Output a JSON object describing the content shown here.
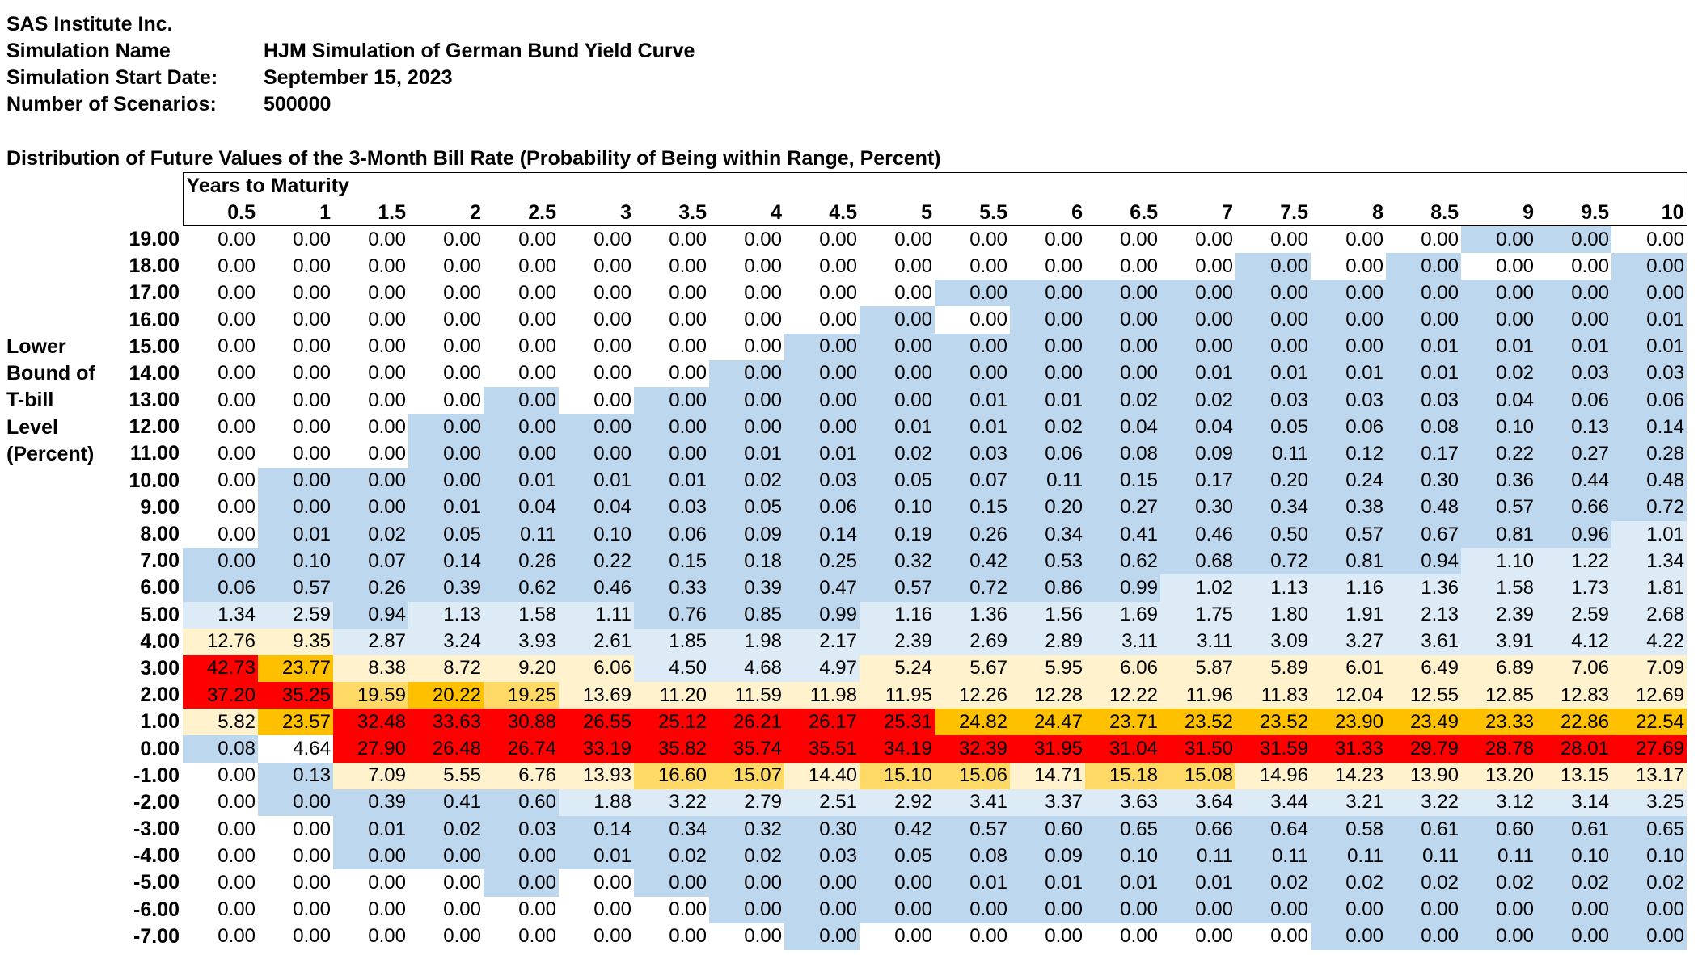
{
  "header": {
    "company": "SAS Institute Inc.",
    "rows": [
      {
        "label": "Simulation Name",
        "value": "HJM Simulation of German Bund Yield Curve"
      },
      {
        "label": "Simulation Start Date:",
        "value": "September 15, 2023"
      },
      {
        "label": "Number of Scenarios:",
        "value": "500000"
      }
    ]
  },
  "table_title": "Distribution of Future Values of the 3-Month Bill Rate (Probability of Being within Range, Percent)",
  "column_group_label": "Years to Maturity",
  "row_axis_label": [
    "Lower",
    "Bound of",
    "T-bill",
    "Level",
    "(Percent)"
  ],
  "colors": {
    "blue": "#bdd7ee",
    "light_blue": "#ddebf7",
    "cream": "#fff2cc",
    "gold": "#ffd966",
    "orange": "#ffc000",
    "red": "#ff0000",
    "white": "#ffffff"
  },
  "columns": [
    "0.5",
    "1",
    "1.5",
    "2",
    "2.5",
    "3",
    "3.5",
    "4",
    "4.5",
    "5",
    "5.5",
    "6",
    "6.5",
    "7",
    "7.5",
    "8",
    "8.5",
    "9",
    "9.5",
    "10"
  ],
  "rows": [
    {
      "label": "19.00",
      "values": [
        "0.00",
        "0.00",
        "0.00",
        "0.00",
        "0.00",
        "0.00",
        "0.00",
        "0.00",
        "0.00",
        "0.00",
        "0.00",
        "0.00",
        "0.00",
        "0.00",
        "0.00",
        "0.00",
        "0.00",
        "0.00",
        "0.00",
        "0.00"
      ],
      "colors": [
        "w",
        "w",
        "w",
        "w",
        "w",
        "w",
        "w",
        "w",
        "w",
        "w",
        "w",
        "w",
        "w",
        "w",
        "w",
        "w",
        "w",
        "b",
        "b",
        "w"
      ]
    },
    {
      "label": "18.00",
      "values": [
        "0.00",
        "0.00",
        "0.00",
        "0.00",
        "0.00",
        "0.00",
        "0.00",
        "0.00",
        "0.00",
        "0.00",
        "0.00",
        "0.00",
        "0.00",
        "0.00",
        "0.00",
        "0.00",
        "0.00",
        "0.00",
        "0.00",
        "0.00"
      ],
      "colors": [
        "w",
        "w",
        "w",
        "w",
        "w",
        "w",
        "w",
        "w",
        "w",
        "w",
        "w",
        "w",
        "w",
        "w",
        "b",
        "w",
        "b",
        "w",
        "w",
        "b"
      ]
    },
    {
      "label": "17.00",
      "values": [
        "0.00",
        "0.00",
        "0.00",
        "0.00",
        "0.00",
        "0.00",
        "0.00",
        "0.00",
        "0.00",
        "0.00",
        "0.00",
        "0.00",
        "0.00",
        "0.00",
        "0.00",
        "0.00",
        "0.00",
        "0.00",
        "0.00",
        "0.00"
      ],
      "colors": [
        "w",
        "w",
        "w",
        "w",
        "w",
        "w",
        "w",
        "w",
        "w",
        "w",
        "b",
        "b",
        "b",
        "b",
        "b",
        "b",
        "b",
        "b",
        "b",
        "b"
      ]
    },
    {
      "label": "16.00",
      "values": [
        "0.00",
        "0.00",
        "0.00",
        "0.00",
        "0.00",
        "0.00",
        "0.00",
        "0.00",
        "0.00",
        "0.00",
        "0.00",
        "0.00",
        "0.00",
        "0.00",
        "0.00",
        "0.00",
        "0.00",
        "0.00",
        "0.00",
        "0.01"
      ],
      "colors": [
        "w",
        "w",
        "w",
        "w",
        "w",
        "w",
        "w",
        "w",
        "w",
        "b",
        "w",
        "b",
        "b",
        "b",
        "b",
        "b",
        "b",
        "b",
        "b",
        "b"
      ]
    },
    {
      "label": "15.00",
      "values": [
        "0.00",
        "0.00",
        "0.00",
        "0.00",
        "0.00",
        "0.00",
        "0.00",
        "0.00",
        "0.00",
        "0.00",
        "0.00",
        "0.00",
        "0.00",
        "0.00",
        "0.00",
        "0.00",
        "0.01",
        "0.01",
        "0.01",
        "0.01"
      ],
      "colors": [
        "w",
        "w",
        "w",
        "w",
        "w",
        "w",
        "w",
        "w",
        "b",
        "b",
        "b",
        "b",
        "b",
        "b",
        "b",
        "b",
        "b",
        "b",
        "b",
        "b"
      ]
    },
    {
      "label": "14.00",
      "values": [
        "0.00",
        "0.00",
        "0.00",
        "0.00",
        "0.00",
        "0.00",
        "0.00",
        "0.00",
        "0.00",
        "0.00",
        "0.00",
        "0.00",
        "0.00",
        "0.01",
        "0.01",
        "0.01",
        "0.01",
        "0.02",
        "0.03",
        "0.03"
      ],
      "colors": [
        "w",
        "w",
        "w",
        "w",
        "w",
        "w",
        "w",
        "b",
        "b",
        "b",
        "b",
        "b",
        "b",
        "b",
        "b",
        "b",
        "b",
        "b",
        "b",
        "b"
      ]
    },
    {
      "label": "13.00",
      "values": [
        "0.00",
        "0.00",
        "0.00",
        "0.00",
        "0.00",
        "0.00",
        "0.00",
        "0.00",
        "0.00",
        "0.00",
        "0.01",
        "0.01",
        "0.02",
        "0.02",
        "0.03",
        "0.03",
        "0.03",
        "0.04",
        "0.06",
        "0.06"
      ],
      "colors": [
        "w",
        "w",
        "w",
        "w",
        "b",
        "w",
        "b",
        "b",
        "b",
        "b",
        "b",
        "b",
        "b",
        "b",
        "b",
        "b",
        "b",
        "b",
        "b",
        "b"
      ]
    },
    {
      "label": "12.00",
      "values": [
        "0.00",
        "0.00",
        "0.00",
        "0.00",
        "0.00",
        "0.00",
        "0.00",
        "0.00",
        "0.00",
        "0.01",
        "0.01",
        "0.02",
        "0.04",
        "0.04",
        "0.05",
        "0.06",
        "0.08",
        "0.10",
        "0.13",
        "0.14"
      ],
      "colors": [
        "w",
        "w",
        "w",
        "b",
        "b",
        "b",
        "b",
        "b",
        "b",
        "b",
        "b",
        "b",
        "b",
        "b",
        "b",
        "b",
        "b",
        "b",
        "b",
        "b"
      ]
    },
    {
      "label": "11.00",
      "values": [
        "0.00",
        "0.00",
        "0.00",
        "0.00",
        "0.00",
        "0.00",
        "0.00",
        "0.01",
        "0.01",
        "0.02",
        "0.03",
        "0.06",
        "0.08",
        "0.09",
        "0.11",
        "0.12",
        "0.17",
        "0.22",
        "0.27",
        "0.28"
      ],
      "colors": [
        "w",
        "w",
        "w",
        "b",
        "b",
        "b",
        "b",
        "b",
        "b",
        "b",
        "b",
        "b",
        "b",
        "b",
        "b",
        "b",
        "b",
        "b",
        "b",
        "b"
      ]
    },
    {
      "label": "10.00",
      "values": [
        "0.00",
        "0.00",
        "0.00",
        "0.00",
        "0.01",
        "0.01",
        "0.01",
        "0.02",
        "0.03",
        "0.05",
        "0.07",
        "0.11",
        "0.15",
        "0.17",
        "0.20",
        "0.24",
        "0.30",
        "0.36",
        "0.44",
        "0.48"
      ],
      "colors": [
        "w",
        "b",
        "b",
        "b",
        "b",
        "b",
        "b",
        "b",
        "b",
        "b",
        "b",
        "b",
        "b",
        "b",
        "b",
        "b",
        "b",
        "b",
        "b",
        "b"
      ]
    },
    {
      "label": "9.00",
      "values": [
        "0.00",
        "0.00",
        "0.00",
        "0.01",
        "0.04",
        "0.04",
        "0.03",
        "0.05",
        "0.06",
        "0.10",
        "0.15",
        "0.20",
        "0.27",
        "0.30",
        "0.34",
        "0.38",
        "0.48",
        "0.57",
        "0.66",
        "0.72"
      ],
      "colors": [
        "w",
        "b",
        "b",
        "b",
        "b",
        "b",
        "b",
        "b",
        "b",
        "b",
        "b",
        "b",
        "b",
        "b",
        "b",
        "b",
        "b",
        "b",
        "b",
        "b"
      ]
    },
    {
      "label": "8.00",
      "values": [
        "0.00",
        "0.01",
        "0.02",
        "0.05",
        "0.11",
        "0.10",
        "0.06",
        "0.09",
        "0.14",
        "0.19",
        "0.26",
        "0.34",
        "0.41",
        "0.46",
        "0.50",
        "0.57",
        "0.67",
        "0.81",
        "0.96",
        "1.01"
      ],
      "colors": [
        "w",
        "b",
        "b",
        "b",
        "b",
        "b",
        "b",
        "b",
        "b",
        "b",
        "b",
        "b",
        "b",
        "b",
        "b",
        "b",
        "b",
        "b",
        "b",
        "l"
      ]
    },
    {
      "label": "7.00",
      "values": [
        "0.00",
        "0.10",
        "0.07",
        "0.14",
        "0.26",
        "0.22",
        "0.15",
        "0.18",
        "0.25",
        "0.32",
        "0.42",
        "0.53",
        "0.62",
        "0.68",
        "0.72",
        "0.81",
        "0.94",
        "1.10",
        "1.22",
        "1.34"
      ],
      "colors": [
        "b",
        "b",
        "b",
        "b",
        "b",
        "b",
        "b",
        "b",
        "b",
        "b",
        "b",
        "b",
        "b",
        "b",
        "b",
        "b",
        "b",
        "l",
        "l",
        "l"
      ]
    },
    {
      "label": "6.00",
      "values": [
        "0.06",
        "0.57",
        "0.26",
        "0.39",
        "0.62",
        "0.46",
        "0.33",
        "0.39",
        "0.47",
        "0.57",
        "0.72",
        "0.86",
        "0.99",
        "1.02",
        "1.13",
        "1.16",
        "1.36",
        "1.58",
        "1.73",
        "1.81"
      ],
      "colors": [
        "b",
        "b",
        "b",
        "b",
        "b",
        "b",
        "b",
        "b",
        "b",
        "b",
        "b",
        "b",
        "b",
        "l",
        "l",
        "l",
        "l",
        "l",
        "l",
        "l"
      ]
    },
    {
      "label": "5.00",
      "values": [
        "1.34",
        "2.59",
        "0.94",
        "1.13",
        "1.58",
        "1.11",
        "0.76",
        "0.85",
        "0.99",
        "1.16",
        "1.36",
        "1.56",
        "1.69",
        "1.75",
        "1.80",
        "1.91",
        "2.13",
        "2.39",
        "2.59",
        "2.68"
      ],
      "colors": [
        "l",
        "l",
        "b",
        "l",
        "l",
        "l",
        "b",
        "b",
        "b",
        "l",
        "l",
        "l",
        "l",
        "l",
        "l",
        "l",
        "l",
        "l",
        "l",
        "l"
      ]
    },
    {
      "label": "4.00",
      "values": [
        "12.76",
        "9.35",
        "2.87",
        "3.24",
        "3.93",
        "2.61",
        "1.85",
        "1.98",
        "2.17",
        "2.39",
        "2.69",
        "2.89",
        "3.11",
        "3.11",
        "3.09",
        "3.27",
        "3.61",
        "3.91",
        "4.12",
        "4.22"
      ],
      "colors": [
        "c",
        "c",
        "l",
        "l",
        "l",
        "l",
        "l",
        "l",
        "l",
        "l",
        "l",
        "l",
        "l",
        "l",
        "l",
        "l",
        "l",
        "l",
        "l",
        "l"
      ]
    },
    {
      "label": "3.00",
      "values": [
        "42.73",
        "23.77",
        "8.38",
        "8.72",
        "9.20",
        "6.06",
        "4.50",
        "4.68",
        "4.97",
        "5.24",
        "5.67",
        "5.95",
        "6.06",
        "5.87",
        "5.89",
        "6.01",
        "6.49",
        "6.89",
        "7.06",
        "7.09"
      ],
      "colors": [
        "r",
        "o",
        "c",
        "c",
        "c",
        "c",
        "l",
        "l",
        "l",
        "c",
        "c",
        "c",
        "c",
        "c",
        "c",
        "c",
        "c",
        "c",
        "c",
        "c"
      ]
    },
    {
      "label": "2.00",
      "values": [
        "37.20",
        "35.25",
        "19.59",
        "20.22",
        "19.25",
        "13.69",
        "11.20",
        "11.59",
        "11.98",
        "11.95",
        "12.26",
        "12.28",
        "12.22",
        "11.96",
        "11.83",
        "12.04",
        "12.55",
        "12.85",
        "12.83",
        "12.69"
      ],
      "colors": [
        "r",
        "r",
        "g",
        "o",
        "g",
        "c",
        "c",
        "c",
        "c",
        "c",
        "c",
        "c",
        "c",
        "c",
        "c",
        "c",
        "c",
        "c",
        "c",
        "c"
      ]
    },
    {
      "label": "1.00",
      "values": [
        "5.82",
        "23.57",
        "32.48",
        "33.63",
        "30.88",
        "26.55",
        "25.12",
        "26.21",
        "26.17",
        "25.31",
        "24.82",
        "24.47",
        "23.71",
        "23.52",
        "23.52",
        "23.90",
        "23.49",
        "23.33",
        "22.86",
        "22.54"
      ],
      "colors": [
        "c",
        "o",
        "r",
        "r",
        "r",
        "r",
        "r",
        "r",
        "r",
        "r",
        "o",
        "o",
        "o",
        "o",
        "o",
        "o",
        "o",
        "o",
        "o",
        "o"
      ]
    },
    {
      "label": "0.00",
      "values": [
        "0.08",
        "4.64",
        "27.90",
        "26.48",
        "26.74",
        "33.19",
        "35.82",
        "35.74",
        "35.51",
        "34.19",
        "32.39",
        "31.95",
        "31.04",
        "31.50",
        "31.59",
        "31.33",
        "29.79",
        "28.78",
        "28.01",
        "27.69"
      ],
      "colors": [
        "b",
        "w",
        "r",
        "r",
        "r",
        "r",
        "r",
        "r",
        "r",
        "r",
        "r",
        "r",
        "r",
        "r",
        "r",
        "r",
        "r",
        "r",
        "r",
        "r"
      ]
    },
    {
      "label": "-1.00",
      "values": [
        "0.00",
        "0.13",
        "7.09",
        "5.55",
        "6.76",
        "13.93",
        "16.60",
        "15.07",
        "14.40",
        "15.10",
        "15.06",
        "14.71",
        "15.18",
        "15.08",
        "14.96",
        "14.23",
        "13.90",
        "13.20",
        "13.15",
        "13.17"
      ],
      "colors": [
        "w",
        "b",
        "c",
        "c",
        "c",
        "c",
        "g",
        "g",
        "c",
        "g",
        "g",
        "c",
        "g",
        "g",
        "c",
        "c",
        "c",
        "c",
        "c",
        "c"
      ]
    },
    {
      "label": "-2.00",
      "values": [
        "0.00",
        "0.00",
        "0.39",
        "0.41",
        "0.60",
        "1.88",
        "3.22",
        "2.79",
        "2.51",
        "2.92",
        "3.41",
        "3.37",
        "3.63",
        "3.64",
        "3.44",
        "3.21",
        "3.22",
        "3.12",
        "3.14",
        "3.25"
      ],
      "colors": [
        "w",
        "b",
        "b",
        "b",
        "b",
        "l",
        "l",
        "l",
        "l",
        "l",
        "l",
        "l",
        "l",
        "l",
        "l",
        "l",
        "l",
        "l",
        "l",
        "l"
      ]
    },
    {
      "label": "-3.00",
      "values": [
        "0.00",
        "0.00",
        "0.01",
        "0.02",
        "0.03",
        "0.14",
        "0.34",
        "0.32",
        "0.30",
        "0.42",
        "0.57",
        "0.60",
        "0.65",
        "0.66",
        "0.64",
        "0.58",
        "0.61",
        "0.60",
        "0.61",
        "0.65"
      ],
      "colors": [
        "w",
        "w",
        "b",
        "b",
        "b",
        "b",
        "b",
        "b",
        "b",
        "b",
        "b",
        "b",
        "b",
        "b",
        "b",
        "b",
        "b",
        "b",
        "b",
        "b"
      ]
    },
    {
      "label": "-4.00",
      "values": [
        "0.00",
        "0.00",
        "0.00",
        "0.00",
        "0.00",
        "0.01",
        "0.02",
        "0.02",
        "0.03",
        "0.05",
        "0.08",
        "0.09",
        "0.10",
        "0.11",
        "0.11",
        "0.11",
        "0.11",
        "0.11",
        "0.10",
        "0.10"
      ],
      "colors": [
        "w",
        "w",
        "b",
        "b",
        "b",
        "b",
        "b",
        "b",
        "b",
        "b",
        "b",
        "b",
        "b",
        "b",
        "b",
        "b",
        "b",
        "b",
        "b",
        "b"
      ]
    },
    {
      "label": "-5.00",
      "values": [
        "0.00",
        "0.00",
        "0.00",
        "0.00",
        "0.00",
        "0.00",
        "0.00",
        "0.00",
        "0.00",
        "0.00",
        "0.01",
        "0.01",
        "0.01",
        "0.01",
        "0.02",
        "0.02",
        "0.02",
        "0.02",
        "0.02",
        "0.02"
      ],
      "colors": [
        "w",
        "w",
        "w",
        "w",
        "b",
        "w",
        "b",
        "b",
        "b",
        "b",
        "b",
        "b",
        "b",
        "b",
        "b",
        "b",
        "b",
        "b",
        "b",
        "b"
      ]
    },
    {
      "label": "-6.00",
      "values": [
        "0.00",
        "0.00",
        "0.00",
        "0.00",
        "0.00",
        "0.00",
        "0.00",
        "0.00",
        "0.00",
        "0.00",
        "0.00",
        "0.00",
        "0.00",
        "0.00",
        "0.00",
        "0.00",
        "0.00",
        "0.00",
        "0.00",
        "0.00"
      ],
      "colors": [
        "w",
        "w",
        "w",
        "w",
        "w",
        "w",
        "w",
        "b",
        "b",
        "b",
        "b",
        "b",
        "b",
        "b",
        "b",
        "b",
        "b",
        "b",
        "b",
        "b"
      ]
    },
    {
      "label": "-7.00",
      "values": [
        "0.00",
        "0.00",
        "0.00",
        "0.00",
        "0.00",
        "0.00",
        "0.00",
        "0.00",
        "0.00",
        "0.00",
        "0.00",
        "0.00",
        "0.00",
        "0.00",
        "0.00",
        "0.00",
        "0.00",
        "0.00",
        "0.00",
        "0.00"
      ],
      "colors": [
        "w",
        "w",
        "w",
        "w",
        "w",
        "w",
        "w",
        "w",
        "b",
        "w",
        "w",
        "w",
        "w",
        "w",
        "w",
        "b",
        "b",
        "b",
        "b",
        "b"
      ]
    }
  ]
}
